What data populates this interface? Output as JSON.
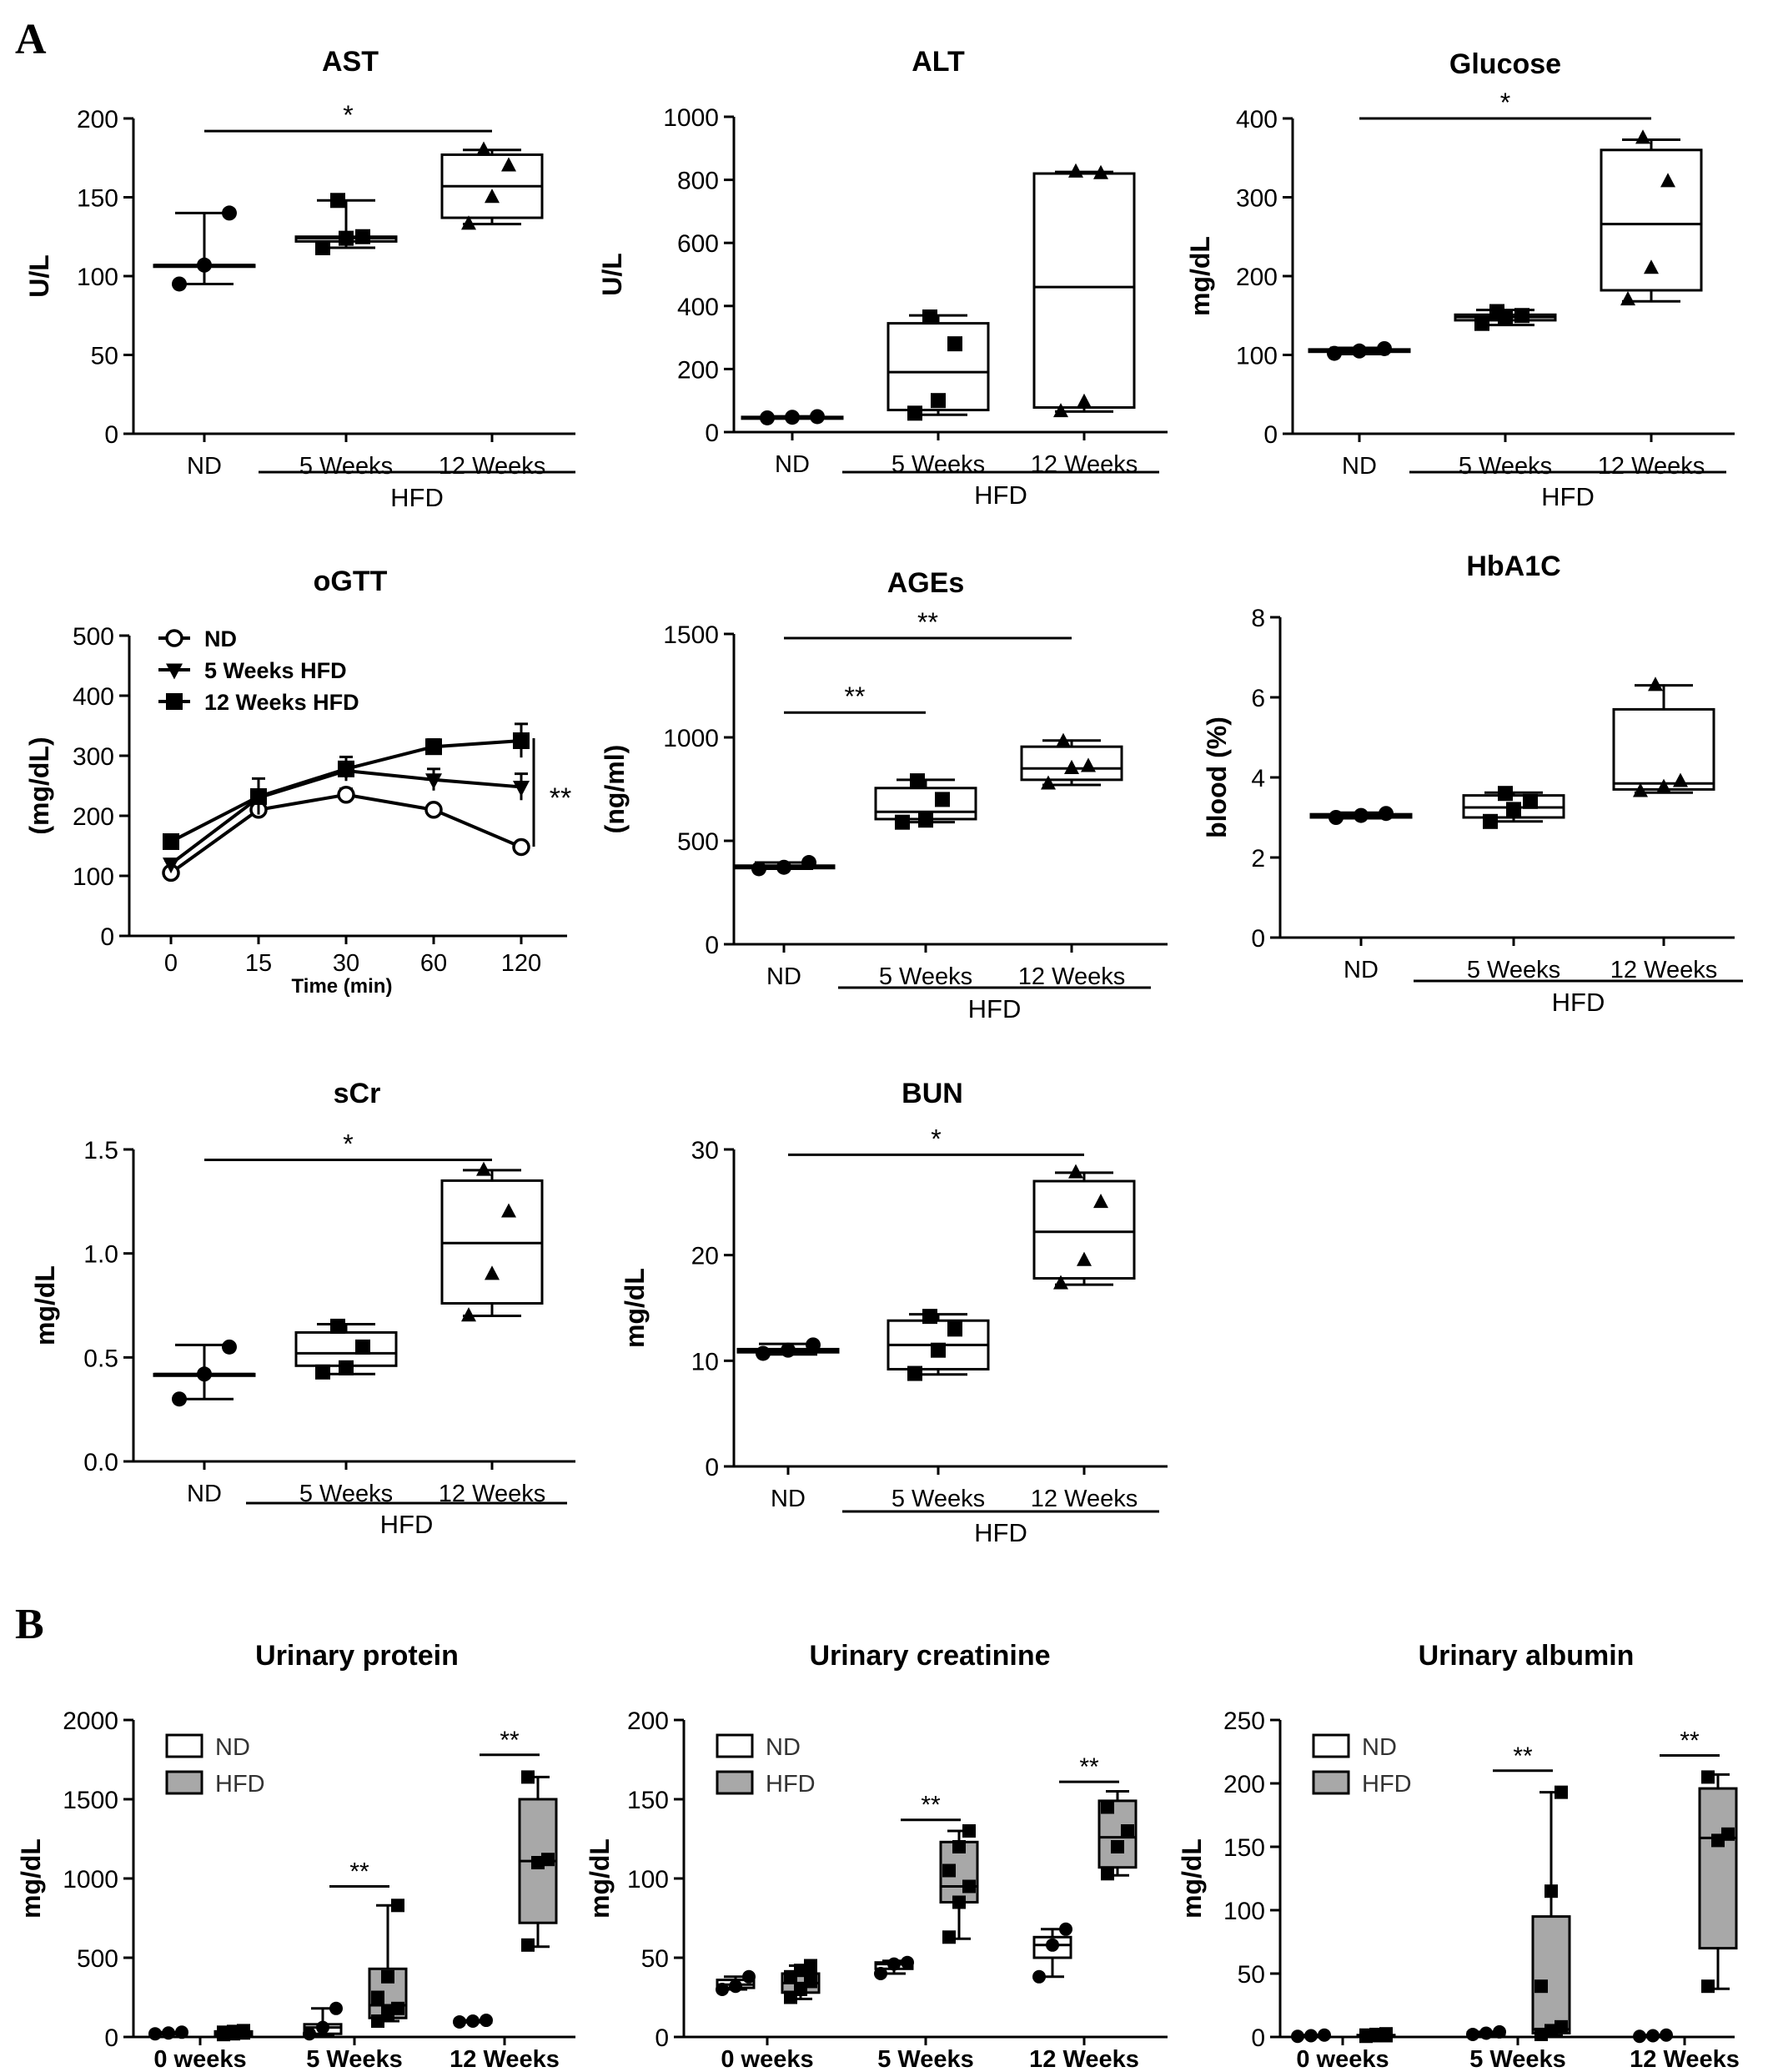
{
  "panels": {
    "a": "A",
    "b": "B"
  },
  "chart_data": [
    {
      "id": "ast",
      "type": "box",
      "title": "AST",
      "ylabel": "U/L",
      "ylim": [
        0,
        200
      ],
      "yticks": [
        0,
        50,
        100,
        150,
        200
      ],
      "categories": [
        "ND",
        "5 Weeks",
        "12 Weeks"
      ],
      "group_label": "HFD",
      "groups": [
        {
          "label": "ND",
          "marker": "circle",
          "points": [
            95,
            107,
            140
          ],
          "box": {
            "min": 95,
            "q1": 107,
            "median": 107,
            "q3": 107,
            "max": 140
          }
        },
        {
          "label": "5 Weeks",
          "marker": "square",
          "points": [
            118,
            124,
            125,
            148
          ],
          "box": {
            "min": 118,
            "q1": 122,
            "median": 124,
            "q3": 125,
            "max": 148
          }
        },
        {
          "label": "12 Weeks",
          "marker": "triangle",
          "points": [
            133,
            150,
            170,
            180
          ],
          "box": {
            "min": 133,
            "q1": 137,
            "median": 157,
            "q3": 177,
            "max": 180
          }
        }
      ],
      "sig": [
        {
          "from": 0,
          "to": 2,
          "y": 192,
          "label": "*"
        }
      ]
    },
    {
      "id": "alt",
      "type": "box",
      "title": "ALT",
      "ylabel": "U/L",
      "ylim": [
        0,
        1000
      ],
      "yticks": [
        0,
        200,
        400,
        600,
        800,
        1000
      ],
      "categories": [
        "ND",
        "5 Weeks",
        "12 Weeks"
      ],
      "group_label": "HFD",
      "groups": [
        {
          "label": "ND",
          "marker": "circle",
          "points": [
            45,
            47,
            49
          ],
          "box": {
            "min": 44,
            "q1": 46,
            "median": 47,
            "q3": 48,
            "max": 50
          }
        },
        {
          "label": "5 Weeks",
          "marker": "square",
          "points": [
            60,
            100,
            280,
            365
          ],
          "box": {
            "min": 55,
            "q1": 70,
            "median": 190,
            "q3": 345,
            "max": 370
          }
        },
        {
          "label": "12 Weeks",
          "marker": "triangle",
          "points": [
            65,
            95,
            820,
            825
          ],
          "box": {
            "min": 65,
            "q1": 78,
            "median": 460,
            "q3": 820,
            "max": 825
          }
        }
      ],
      "sig": []
    },
    {
      "id": "glucose",
      "type": "box",
      "title": "Glucose",
      "ylabel": "mg/dL",
      "ylim": [
        0,
        400
      ],
      "yticks": [
        0,
        100,
        200,
        300,
        400
      ],
      "categories": [
        "ND",
        "5 Weeks",
        "12 Weeks"
      ],
      "group_label": "HFD",
      "groups": [
        {
          "label": "ND",
          "marker": "circle",
          "points": [
            102,
            105,
            108
          ],
          "box": {
            "min": 101,
            "q1": 104,
            "median": 105,
            "q3": 107,
            "max": 109
          }
        },
        {
          "label": "5 Weeks",
          "marker": "square",
          "points": [
            140,
            148,
            150,
            155
          ],
          "box": {
            "min": 138,
            "q1": 144,
            "median": 148,
            "q3": 151,
            "max": 157
          }
        },
        {
          "label": "12 Weeks",
          "marker": "triangle",
          "points": [
            170,
            210,
            320,
            375
          ],
          "box": {
            "min": 168,
            "q1": 182,
            "median": 266,
            "q3": 360,
            "max": 373
          }
        }
      ],
      "sig": [
        {
          "from": 0,
          "to": 2,
          "y": 400,
          "label": "*"
        }
      ]
    },
    {
      "id": "ogtt",
      "type": "line",
      "title": "oGTT",
      "ylabel": "(mg/dL)",
      "xlabel": "Time (min)",
      "ylim": [
        0,
        500
      ],
      "yticks": [
        0,
        100,
        200,
        300,
        400,
        500
      ],
      "categories": [
        "0",
        "15",
        "30",
        "60",
        "120"
      ],
      "series": [
        {
          "name": "ND",
          "marker": "circle-open",
          "values": [
            105,
            210,
            235,
            210,
            148
          ],
          "errors": [
            6,
            8,
            10,
            8,
            6
          ]
        },
        {
          "name": "5 Weeks HFD",
          "marker": "triangle-down",
          "values": [
            120,
            230,
            275,
            260,
            248
          ],
          "errors": [
            6,
            12,
            10,
            18,
            22
          ]
        },
        {
          "name": "12 Weeks HFD",
          "marker": "square",
          "values": [
            157,
            232,
            278,
            315,
            325
          ],
          "errors": [
            6,
            30,
            20,
            12,
            28
          ]
        }
      ],
      "sig_bracket": {
        "label": "**"
      }
    },
    {
      "id": "ages",
      "type": "box",
      "title": "AGEs",
      "ylabel": "(ng/ml)",
      "ylim": [
        0,
        1500
      ],
      "yticks": [
        0,
        500,
        1000,
        1500
      ],
      "categories": [
        "ND",
        "5 Weeks",
        "12 Weeks"
      ],
      "group_label": "HFD",
      "groups": [
        {
          "label": "ND",
          "marker": "circle",
          "points": [
            365,
            372,
            395
          ],
          "box": {
            "min": 365,
            "q1": 368,
            "median": 372,
            "q3": 380,
            "max": 395
          }
        },
        {
          "label": "5 Weeks",
          "marker": "square",
          "points": [
            590,
            600,
            700,
            790
          ],
          "box": {
            "min": 590,
            "q1": 605,
            "median": 640,
            "q3": 755,
            "max": 795
          }
        },
        {
          "label": "12 Weeks",
          "marker": "triangle",
          "points": [
            775,
            850,
            860,
            980
          ],
          "box": {
            "min": 770,
            "q1": 795,
            "median": 850,
            "q3": 955,
            "max": 985
          }
        }
      ],
      "sig": [
        {
          "from": 0,
          "to": 2,
          "y": 1480,
          "label": "**"
        },
        {
          "from": 0,
          "to": 1,
          "y": 1120,
          "label": "**"
        }
      ]
    },
    {
      "id": "hba1c",
      "type": "box",
      "title": "HbA1C",
      "ylabel": "blood (%)",
      "ylim": [
        0,
        8
      ],
      "yticks": [
        0,
        2,
        4,
        6,
        8
      ],
      "categories": [
        "ND",
        "5 Weeks",
        "12 Weeks"
      ],
      "group_label": "HFD",
      "groups": [
        {
          "label": "ND",
          "marker": "circle",
          "points": [
            3.0,
            3.05,
            3.1
          ],
          "box": {
            "min": 2.98,
            "q1": 3.0,
            "median": 3.05,
            "q3": 3.08,
            "max": 3.12
          }
        },
        {
          "label": "5 Weeks",
          "marker": "square",
          "points": [
            2.9,
            3.2,
            3.4,
            3.6
          ],
          "box": {
            "min": 2.9,
            "q1": 3.0,
            "median": 3.25,
            "q3": 3.55,
            "max": 3.62
          }
        },
        {
          "label": "12 Weeks",
          "marker": "triangle",
          "points": [
            3.65,
            3.75,
            3.9,
            6.3
          ],
          "box": {
            "min": 3.62,
            "q1": 3.7,
            "median": 3.85,
            "q3": 5.7,
            "max": 6.3
          }
        }
      ],
      "sig": []
    },
    {
      "id": "scr",
      "type": "box",
      "title": "sCr",
      "ylabel": "mg/dL",
      "ylim": [
        0,
        1.5
      ],
      "yticks": [
        0.0,
        0.5,
        1.0,
        1.5
      ],
      "tick_format": "1dp",
      "categories": [
        "ND",
        "5 Weeks",
        "12 Weeks"
      ],
      "group_label": "HFD",
      "groups": [
        {
          "label": "ND",
          "marker": "circle",
          "points": [
            0.3,
            0.42,
            0.55
          ],
          "box": {
            "min": 0.3,
            "q1": 0.42,
            "median": 0.42,
            "q3": 0.42,
            "max": 0.56
          }
        },
        {
          "label": "5 Weeks",
          "marker": "square",
          "points": [
            0.43,
            0.45,
            0.55,
            0.65
          ],
          "box": {
            "min": 0.42,
            "q1": 0.46,
            "median": 0.52,
            "q3": 0.62,
            "max": 0.66
          }
        },
        {
          "label": "12 Weeks",
          "marker": "triangle",
          "points": [
            0.7,
            0.9,
            1.2,
            1.4
          ],
          "box": {
            "min": 0.7,
            "q1": 0.76,
            "median": 1.05,
            "q3": 1.35,
            "max": 1.4
          }
        }
      ],
      "sig": [
        {
          "from": 0,
          "to": 2,
          "y": 1.45,
          "label": "*"
        }
      ]
    },
    {
      "id": "bun",
      "type": "box",
      "title": "BUN",
      "ylabel": "mg/dL",
      "ylim": [
        0,
        30
      ],
      "yticks": [
        0,
        10,
        20,
        30
      ],
      "categories": [
        "ND",
        "5 Weeks",
        "12 Weeks"
      ],
      "group_label": "HFD",
      "groups": [
        {
          "label": "ND",
          "marker": "circle",
          "points": [
            10.7,
            11.0,
            11.5
          ],
          "box": {
            "min": 10.6,
            "q1": 10.8,
            "median": 11.0,
            "q3": 11.1,
            "max": 11.6
          }
        },
        {
          "label": "5 Weeks",
          "marker": "square",
          "points": [
            8.8,
            11.0,
            13.0,
            14.2
          ],
          "box": {
            "min": 8.7,
            "q1": 9.2,
            "median": 11.5,
            "q3": 13.8,
            "max": 14.4
          }
        },
        {
          "label": "12 Weeks",
          "marker": "triangle",
          "points": [
            17.3,
            19.5,
            25.0,
            27.8
          ],
          "box": {
            "min": 17.2,
            "q1": 17.8,
            "median": 22.2,
            "q3": 27.0,
            "max": 27.8
          }
        }
      ],
      "sig": [
        {
          "from": 0,
          "to": 2,
          "y": 29.5,
          "label": "*"
        }
      ]
    },
    {
      "id": "uprotein",
      "type": "grouped-box",
      "title": "Urinary protein",
      "ylabel": "mg/dL",
      "ylim": [
        0,
        2000
      ],
      "yticks": [
        0,
        500,
        1000,
        1500,
        2000
      ],
      "categories": [
        "0 weeks",
        "5 Weeks",
        "12 Weeks"
      ],
      "legend": [
        "ND",
        "HFD"
      ],
      "colors": {
        "nd": "#ffffff",
        "hfd": "#a8a8a8"
      },
      "nd": [
        {
          "points": [
            20,
            25,
            30
          ],
          "box": {
            "min": 18,
            "q1": 20,
            "median": 25,
            "q3": 28,
            "max": 30
          }
        },
        {
          "points": [
            20,
            60,
            180
          ],
          "box": {
            "min": 15,
            "q1": 20,
            "median": 60,
            "q3": 80,
            "max": 180
          }
        },
        {
          "points": [
            95,
            100,
            105
          ],
          "box": {
            "min": 95,
            "q1": 98,
            "median": 100,
            "q3": 103,
            "max": 105
          }
        }
      ],
      "hfd": [
        {
          "points": [
            15,
            20,
            25,
            30,
            35,
            40
          ],
          "box": {
            "min": 10,
            "q1": 15,
            "median": 25,
            "q3": 35,
            "max": 45
          }
        },
        {
          "points": [
            100,
            150,
            180,
            250,
            380,
            830
          ],
          "box": {
            "min": 100,
            "q1": 120,
            "median": 200,
            "q3": 430,
            "max": 830
          }
        },
        {
          "points": [
            580,
            1100,
            1120,
            1640
          ],
          "box": {
            "min": 570,
            "q1": 720,
            "median": 1110,
            "q3": 1500,
            "max": 1640
          }
        }
      ],
      "sig": [
        {
          "cat": 1,
          "y": 950,
          "label": "**"
        },
        {
          "cat": 2,
          "y": 1780,
          "label": "**"
        }
      ]
    },
    {
      "id": "ucreatinine",
      "type": "grouped-box",
      "title": "Urinary creatinine",
      "ylabel": "mg/dL",
      "ylim": [
        0,
        200
      ],
      "yticks": [
        0,
        50,
        100,
        150,
        200
      ],
      "categories": [
        "0 weeks",
        "5 Weeks",
        "12 Weeks"
      ],
      "legend": [
        "ND",
        "HFD"
      ],
      "colors": {
        "nd": "#ffffff",
        "hfd": "#a8a8a8"
      },
      "nd": [
        {
          "points": [
            30,
            32,
            38
          ],
          "box": {
            "min": 30,
            "q1": 31,
            "median": 33,
            "q3": 36,
            "max": 38
          }
        },
        {
          "points": [
            40,
            46,
            47
          ],
          "box": {
            "min": 40,
            "q1": 43,
            "median": 46,
            "q3": 47,
            "max": 48
          }
        },
        {
          "points": [
            38,
            58,
            68
          ],
          "box": {
            "min": 38,
            "q1": 50,
            "median": 58,
            "q3": 63,
            "max": 68
          }
        }
      ],
      "hfd": [
        {
          "points": [
            25,
            30,
            35,
            38,
            42,
            45
          ],
          "box": {
            "min": 24,
            "q1": 28,
            "median": 34,
            "q3": 40,
            "max": 45
          }
        },
        {
          "points": [
            63,
            85,
            95,
            105,
            120,
            130
          ],
          "box": {
            "min": 62,
            "q1": 85,
            "median": 95,
            "q3": 123,
            "max": 130
          }
        },
        {
          "points": [
            103,
            120,
            130,
            145
          ],
          "box": {
            "min": 102,
            "q1": 107,
            "median": 126,
            "q3": 149,
            "max": 155
          }
        }
      ],
      "sig": [
        {
          "cat": 1,
          "y": 137,
          "label": "**"
        },
        {
          "cat": 2,
          "y": 161,
          "label": "**"
        }
      ]
    },
    {
      "id": "ualbumin",
      "type": "grouped-box",
      "title": "Urinary albumin",
      "ylabel": "mg/dL",
      "ylim": [
        0,
        250
      ],
      "yticks": [
        0,
        50,
        100,
        150,
        200,
        250
      ],
      "categories": [
        "0 weeks",
        "5 Weeks",
        "12 Weeks"
      ],
      "legend": [
        "ND",
        "HFD"
      ],
      "colors": {
        "nd": "#ffffff",
        "hfd": "#a8a8a8"
      },
      "nd": [
        {
          "points": [
            0.5,
            1,
            1.5
          ],
          "box": {
            "min": 0.5,
            "q1": 0.8,
            "median": 1,
            "q3": 1.2,
            "max": 1.5
          }
        },
        {
          "points": [
            2,
            3,
            4
          ],
          "box": {
            "min": 2,
            "q1": 2.5,
            "median": 3,
            "q3": 3.5,
            "max": 4
          }
        },
        {
          "points": [
            0.5,
            1,
            1.5
          ],
          "box": {
            "min": 0.5,
            "q1": 0.8,
            "median": 1,
            "q3": 1.2,
            "max": 1.5
          }
        }
      ],
      "hfd": [
        {
          "points": [
            0.5,
            1,
            1,
            1.5,
            2,
            2.5
          ],
          "box": {
            "min": 0.5,
            "q1": 0.8,
            "median": 1,
            "q3": 1.5,
            "max": 2.5
          }
        },
        {
          "points": [
            2,
            5,
            8,
            40,
            115,
            193
          ],
          "box": {
            "min": 1,
            "q1": 3,
            "median": 6,
            "q3": 95,
            "max": 193
          }
        },
        {
          "points": [
            40,
            155,
            160,
            205
          ],
          "box": {
            "min": 38,
            "q1": 70,
            "median": 157,
            "q3": 196,
            "max": 207
          }
        }
      ],
      "sig": [
        {
          "cat": 1,
          "y": 210,
          "label": "**"
        },
        {
          "cat": 2,
          "y": 222,
          "label": "**"
        }
      ]
    }
  ]
}
